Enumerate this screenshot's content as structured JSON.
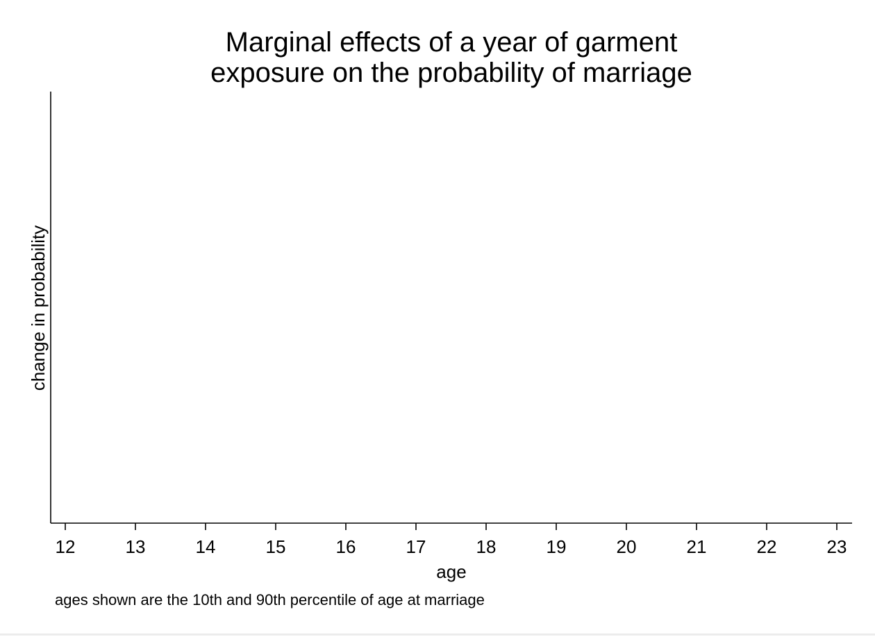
{
  "chart_data": {
    "type": "line",
    "title": [
      "Marginal effects of a year of garment",
      "exposure on the probability of marriage"
    ],
    "xlabel": "age",
    "ylabel": "change in probability",
    "note": "ages shown are the 10th and 90th percentile of age at marriage",
    "xlim": [
      12,
      23
    ],
    "xticks": [
      12,
      13,
      14,
      15,
      16,
      17,
      18,
      19,
      20,
      21,
      22,
      23
    ],
    "series": [],
    "grid": false,
    "colors": {
      "axis": "#000000",
      "background": "#ffffff"
    }
  }
}
